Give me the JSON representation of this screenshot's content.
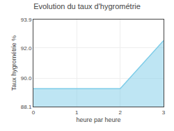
{
  "chart_data": {
    "type": "area",
    "title": "Evolution du taux d'hygrométrie",
    "xlabel": "heure par heure",
    "ylabel": "Taux hygrométrie %",
    "x": [
      0,
      2,
      3
    ],
    "values": [
      89.3,
      89.3,
      92.5
    ],
    "color": "#7dcce8",
    "xlim": [
      0,
      3
    ],
    "xticks": [
      0,
      1,
      2,
      3
    ],
    "ylim": [
      88.1,
      93.9
    ],
    "yticks": [
      88.1,
      {
        "value": 90,
        "label": "90.0"
      },
      {
        "value": 92,
        "label": "92.0"
      },
      93.9
    ],
    "grid": true
  }
}
